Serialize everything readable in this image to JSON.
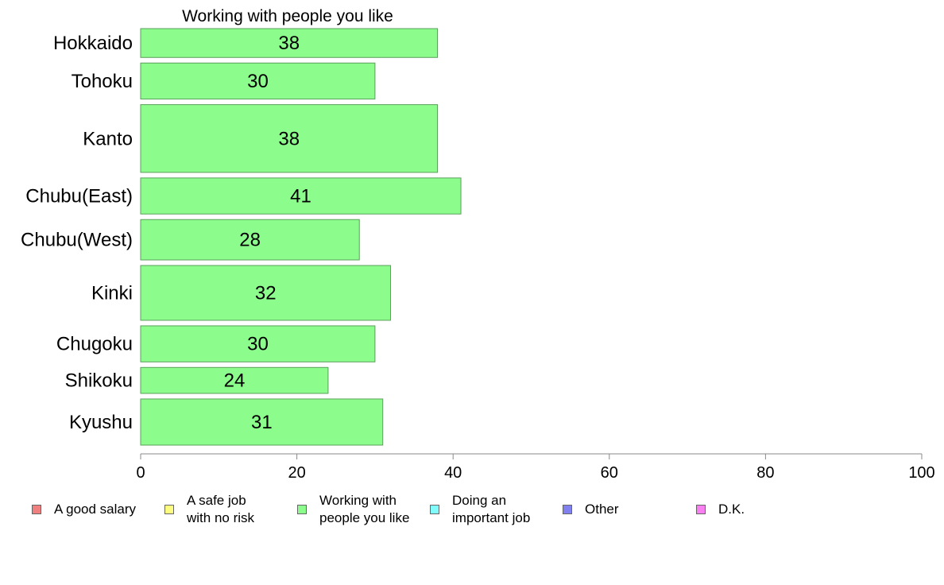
{
  "chart_data": {
    "type": "bar",
    "orientation": "horizontal",
    "title": "Working with people you like",
    "categories": [
      "Hokkaido",
      "Tohoku",
      "Kanto",
      "Chubu(East)",
      "Chubu(West)",
      "Kinki",
      "Chugoku",
      "Shikoku",
      "Kyushu"
    ],
    "values": [
      38,
      30,
      38,
      41,
      28,
      32,
      30,
      24,
      31
    ],
    "value_labels": [
      "38",
      "30",
      "38",
      "41",
      "28",
      "32",
      "30",
      "24",
      "31"
    ],
    "bar_weights": [
      1.0,
      1.25,
      2.35,
      1.25,
      1.4,
      1.9,
      1.25,
      0.9,
      1.6
    ],
    "xlim": [
      0,
      100
    ],
    "xticks": [
      0,
      20,
      40,
      60,
      80,
      100
    ],
    "xtick_labels": [
      "0",
      "20",
      "40",
      "60",
      "80",
      "100"
    ],
    "bar_color": "#8cfc8c",
    "legend": [
      {
        "label": "A good salary",
        "color": "#f08080"
      },
      {
        "label": "A safe job\nwith no risk",
        "color": "#fcfc80"
      },
      {
        "label": "Working with\npeople you like",
        "color": "#8cfc8c"
      },
      {
        "label": "Doing an\nimportant job",
        "color": "#80fcfc"
      },
      {
        "label": "Other",
        "color": "#8080f0"
      },
      {
        "label": "D.K.",
        "color": "#f880f0"
      }
    ],
    "legend_position": "bottom",
    "grid": false
  }
}
